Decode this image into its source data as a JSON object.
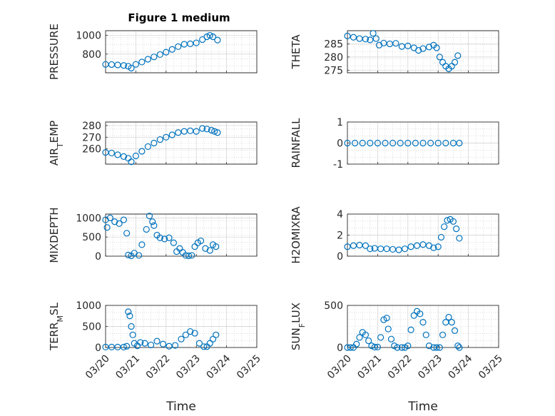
{
  "figure_title": "Figure 1 medium",
  "colors": {
    "series": "#0072bd",
    "axes": "#262626",
    "grid": "#d0d0d0"
  },
  "chart_data": [
    {
      "id": "pressure",
      "type": "scatter",
      "ylabel": "PRESSURE",
      "title": "Figure 1 medium",
      "ylim": [
        600,
        1050
      ],
      "yticks": [
        800,
        1000
      ],
      "xlim": [
        0,
        5
      ],
      "points": [
        [
          0,
          690
        ],
        [
          0.2,
          688
        ],
        [
          0.4,
          684
        ],
        [
          0.6,
          678
        ],
        [
          0.75,
          670
        ],
        [
          0.85,
          650
        ],
        [
          1.0,
          690
        ],
        [
          1.2,
          715
        ],
        [
          1.4,
          745
        ],
        [
          1.6,
          770
        ],
        [
          1.8,
          795
        ],
        [
          2.0,
          820
        ],
        [
          2.2,
          850
        ],
        [
          2.4,
          880
        ],
        [
          2.6,
          905
        ],
        [
          2.8,
          910
        ],
        [
          3.0,
          920
        ],
        [
          3.2,
          955
        ],
        [
          3.35,
          985
        ],
        [
          3.45,
          1000
        ],
        [
          3.55,
          985
        ],
        [
          3.7,
          950
        ]
      ]
    },
    {
      "id": "theta",
      "type": "scatter",
      "ylabel": "THETA",
      "ylim": [
        274,
        290
      ],
      "yticks": [
        275,
        280,
        285
      ],
      "xlim": [
        0,
        5
      ],
      "points": [
        [
          0,
          288
        ],
        [
          0.2,
          287.5
        ],
        [
          0.4,
          287
        ],
        [
          0.6,
          286.8
        ],
        [
          0.75,
          286.5
        ],
        [
          0.85,
          289
        ],
        [
          0.95,
          287
        ],
        [
          1.05,
          284.5
        ],
        [
          1.2,
          285.3
        ],
        [
          1.4,
          285
        ],
        [
          1.6,
          285.2
        ],
        [
          1.8,
          284
        ],
        [
          2.0,
          284.2
        ],
        [
          2.2,
          283.5
        ],
        [
          2.35,
          282.5
        ],
        [
          2.5,
          283.2
        ],
        [
          2.7,
          283.8
        ],
        [
          2.85,
          284.5
        ],
        [
          2.95,
          283.5
        ],
        [
          3.05,
          280
        ],
        [
          3.15,
          278
        ],
        [
          3.25,
          276.5
        ],
        [
          3.35,
          275.5
        ],
        [
          3.45,
          276.5
        ],
        [
          3.55,
          278
        ],
        [
          3.65,
          280.5
        ]
      ]
    },
    {
      "id": "air_temp",
      "type": "scatter",
      "ylabel": "AIR_TEMP",
      "ylim": [
        247,
        283
      ],
      "yticks": [
        260,
        270,
        280
      ],
      "xlim": [
        0,
        5
      ],
      "points": [
        [
          0,
          257
        ],
        [
          0.2,
          256.5
        ],
        [
          0.4,
          255
        ],
        [
          0.6,
          253.5
        ],
        [
          0.75,
          252
        ],
        [
          0.85,
          249
        ],
        [
          1.0,
          254
        ],
        [
          1.2,
          258
        ],
        [
          1.4,
          262
        ],
        [
          1.6,
          265
        ],
        [
          1.8,
          268
        ],
        [
          2.0,
          270
        ],
        [
          2.2,
          272
        ],
        [
          2.4,
          274
        ],
        [
          2.6,
          275
        ],
        [
          2.8,
          275.5
        ],
        [
          3.0,
          275
        ],
        [
          3.2,
          277.5
        ],
        [
          3.35,
          277
        ],
        [
          3.5,
          276
        ],
        [
          3.6,
          275
        ],
        [
          3.7,
          274
        ]
      ]
    },
    {
      "id": "rainfall",
      "type": "scatter",
      "ylabel": "RAINFALL",
      "ylim": [
        -1,
        1
      ],
      "yticks": [
        -1,
        0,
        1
      ],
      "xlim": [
        0,
        5
      ],
      "points": [
        [
          0,
          0
        ],
        [
          0.25,
          0
        ],
        [
          0.5,
          0
        ],
        [
          0.75,
          0
        ],
        [
          1.0,
          0
        ],
        [
          1.25,
          0
        ],
        [
          1.5,
          0
        ],
        [
          1.75,
          0
        ],
        [
          2.0,
          0
        ],
        [
          2.25,
          0
        ],
        [
          2.5,
          0
        ],
        [
          2.75,
          0
        ],
        [
          3.0,
          0
        ],
        [
          3.25,
          0
        ],
        [
          3.5,
          0
        ],
        [
          3.7,
          0
        ]
      ]
    },
    {
      "id": "mixdepth",
      "type": "scatter",
      "ylabel": "MIXDEPTH",
      "ylim": [
        0,
        1100
      ],
      "yticks": [
        0,
        500,
        1000
      ],
      "xlim": [
        0,
        5
      ],
      "points": [
        [
          0,
          950
        ],
        [
          0.05,
          750
        ],
        [
          0.15,
          1000
        ],
        [
          0.3,
          900
        ],
        [
          0.45,
          850
        ],
        [
          0.6,
          950
        ],
        [
          0.7,
          600
        ],
        [
          0.75,
          30
        ],
        [
          0.85,
          10
        ],
        [
          0.95,
          80
        ],
        [
          1.1,
          20
        ],
        [
          1.2,
          300
        ],
        [
          1.35,
          700
        ],
        [
          1.45,
          1050
        ],
        [
          1.55,
          900
        ],
        [
          1.6,
          800
        ],
        [
          1.7,
          550
        ],
        [
          1.8,
          480
        ],
        [
          1.95,
          450
        ],
        [
          2.1,
          480
        ],
        [
          2.25,
          350
        ],
        [
          2.35,
          120
        ],
        [
          2.45,
          200
        ],
        [
          2.55,
          100
        ],
        [
          2.65,
          20
        ],
        [
          2.75,
          10
        ],
        [
          2.85,
          20
        ],
        [
          2.95,
          250
        ],
        [
          3.05,
          350
        ],
        [
          3.15,
          400
        ],
        [
          3.3,
          200
        ],
        [
          3.45,
          150
        ],
        [
          3.55,
          300
        ],
        [
          3.65,
          250
        ]
      ]
    },
    {
      "id": "h2omixra",
      "type": "scatter",
      "ylabel": "H2OMIXRA",
      "ylim": [
        0,
        4
      ],
      "yticks": [
        0,
        2,
        4
      ],
      "xlim": [
        0,
        5
      ],
      "points": [
        [
          0,
          0.9
        ],
        [
          0.2,
          1.0
        ],
        [
          0.4,
          1.05
        ],
        [
          0.6,
          1.0
        ],
        [
          0.75,
          0.7
        ],
        [
          0.9,
          0.75
        ],
        [
          1.1,
          0.7
        ],
        [
          1.3,
          0.7
        ],
        [
          1.5,
          0.65
        ],
        [
          1.7,
          0.6
        ],
        [
          1.9,
          0.7
        ],
        [
          2.1,
          0.9
        ],
        [
          2.3,
          1.0
        ],
        [
          2.5,
          1.1
        ],
        [
          2.7,
          1.0
        ],
        [
          2.85,
          0.8
        ],
        [
          3.0,
          0.9
        ],
        [
          3.1,
          1.8
        ],
        [
          3.2,
          2.8
        ],
        [
          3.3,
          3.4
        ],
        [
          3.4,
          3.5
        ],
        [
          3.5,
          3.3
        ],
        [
          3.6,
          2.6
        ],
        [
          3.7,
          1.7
        ]
      ]
    },
    {
      "id": "terr_msl",
      "type": "scatter",
      "ylabel": "TERR_MSL",
      "ylim": [
        0,
        1000
      ],
      "yticks": [
        0,
        500,
        1000
      ],
      "xlim": [
        0,
        5
      ],
      "xlabel": "Time",
      "xticklabels": [
        "03/20",
        "03/21",
        "03/22",
        "03/23",
        "03/24",
        "03/25"
      ],
      "points": [
        [
          0,
          10
        ],
        [
          0.2,
          10
        ],
        [
          0.4,
          10
        ],
        [
          0.6,
          10
        ],
        [
          0.7,
          30
        ],
        [
          0.75,
          850
        ],
        [
          0.8,
          750
        ],
        [
          0.85,
          500
        ],
        [
          0.9,
          300
        ],
        [
          0.95,
          100
        ],
        [
          1.05,
          40
        ],
        [
          1.15,
          120
        ],
        [
          1.3,
          100
        ],
        [
          1.5,
          60
        ],
        [
          1.7,
          150
        ],
        [
          1.9,
          80
        ],
        [
          2.1,
          30
        ],
        [
          2.3,
          50
        ],
        [
          2.5,
          200
        ],
        [
          2.65,
          300
        ],
        [
          2.8,
          380
        ],
        [
          2.95,
          340
        ],
        [
          3.1,
          100
        ],
        [
          3.25,
          20
        ],
        [
          3.35,
          20
        ],
        [
          3.45,
          100
        ],
        [
          3.55,
          200
        ],
        [
          3.65,
          300
        ]
      ]
    },
    {
      "id": "sun_flux",
      "type": "scatter",
      "ylabel": "SUN_FLUX",
      "ylim": [
        0,
        500
      ],
      "yticks": [
        0,
        500
      ],
      "xlim": [
        0,
        5
      ],
      "xlabel": "Time",
      "xticklabels": [
        "03/20",
        "03/21",
        "03/22",
        "03/23",
        "03/24",
        "03/25"
      ],
      "points": [
        [
          0,
          0
        ],
        [
          0.1,
          0
        ],
        [
          0.2,
          0
        ],
        [
          0.3,
          40
        ],
        [
          0.4,
          120
        ],
        [
          0.5,
          180
        ],
        [
          0.6,
          150
        ],
        [
          0.7,
          80
        ],
        [
          0.8,
          20
        ],
        [
          0.9,
          5
        ],
        [
          1.0,
          5
        ],
        [
          1.1,
          120
        ],
        [
          1.2,
          330
        ],
        [
          1.3,
          350
        ],
        [
          1.35,
          220
        ],
        [
          1.45,
          100
        ],
        [
          1.55,
          20
        ],
        [
          1.65,
          0
        ],
        [
          1.8,
          0
        ],
        [
          1.9,
          0
        ],
        [
          2.0,
          20
        ],
        [
          2.1,
          210
        ],
        [
          2.2,
          380
        ],
        [
          2.3,
          430
        ],
        [
          2.4,
          400
        ],
        [
          2.5,
          300
        ],
        [
          2.6,
          150
        ],
        [
          2.7,
          20
        ],
        [
          2.85,
          0
        ],
        [
          2.95,
          0
        ],
        [
          3.05,
          0
        ],
        [
          3.15,
          150
        ],
        [
          3.25,
          300
        ],
        [
          3.35,
          360
        ],
        [
          3.45,
          300
        ],
        [
          3.55,
          200
        ],
        [
          3.65,
          20
        ],
        [
          3.7,
          0
        ]
      ]
    }
  ]
}
